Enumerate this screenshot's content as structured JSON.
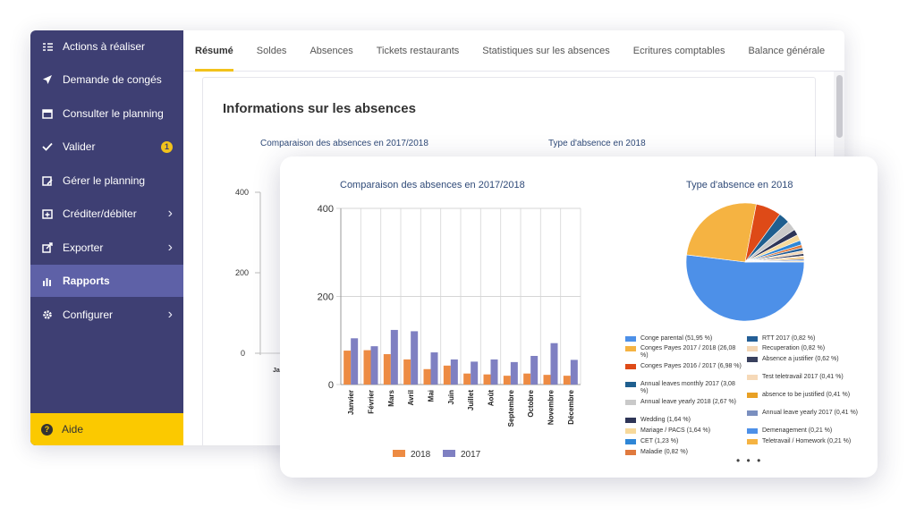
{
  "sidebar": {
    "items": [
      {
        "label": "Actions à réaliser",
        "icon": "tasks-icon",
        "chevron": false,
        "badge": null,
        "active": false
      },
      {
        "label": "Demande de congés",
        "icon": "paper-plane-icon",
        "chevron": false,
        "badge": null,
        "active": false
      },
      {
        "label": "Consulter le planning",
        "icon": "calendar-icon",
        "chevron": false,
        "badge": null,
        "active": false
      },
      {
        "label": "Valider",
        "icon": "check-icon",
        "chevron": false,
        "badge": "1",
        "active": false
      },
      {
        "label": "Gérer le planning",
        "icon": "calendar-edit-icon",
        "chevron": false,
        "badge": null,
        "active": false
      },
      {
        "label": "Créditer/débiter",
        "icon": "calendar-plus-icon",
        "chevron": true,
        "badge": null,
        "active": false
      },
      {
        "label": "Exporter",
        "icon": "export-icon",
        "chevron": true,
        "badge": null,
        "active": false
      },
      {
        "label": "Rapports",
        "icon": "bar-chart-icon",
        "chevron": false,
        "badge": null,
        "active": true
      },
      {
        "label": "Configurer",
        "icon": "gear-icon",
        "chevron": true,
        "badge": null,
        "active": false
      }
    ],
    "help": {
      "label": "Aide",
      "icon_text": "?"
    }
  },
  "tabs": [
    {
      "label": "Résumé",
      "active": true
    },
    {
      "label": "Soldes",
      "active": false
    },
    {
      "label": "Absences",
      "active": false
    },
    {
      "label": "Tickets restaurants",
      "active": false
    },
    {
      "label": "Statistiques sur les absences",
      "active": false
    },
    {
      "label": "Ecritures comptables",
      "active": false
    },
    {
      "label": "Balance générale",
      "active": false
    }
  ],
  "content": {
    "section_title": "Informations sur les absences",
    "bg_bar_title": "Comparaison des absences en 2017/2018",
    "bg_pie_title": "Type d'absence en 2018",
    "bg_y_ticks": [
      "400",
      "200",
      "0"
    ],
    "bg_x_first": "Jan"
  },
  "colors": {
    "sidebar": "#3e3f73",
    "active": "#5e61a7",
    "accent": "#f2c21b",
    "series_2018": "#ed8b43",
    "series_2017": "#7f80c2"
  },
  "chart_data": [
    {
      "type": "bar",
      "title": "Comparaison des absences en 2017/2018",
      "categories": [
        "Janvier",
        "Février",
        "Mars",
        "Avril",
        "Mai",
        "Juin",
        "Juillet",
        "Août",
        "Septembre",
        "Octobre",
        "Novembre",
        "Décembre"
      ],
      "series": [
        {
          "name": "2018",
          "color": "#ed8b43",
          "values": [
            77,
            78,
            69,
            57,
            35,
            43,
            25,
            23,
            20,
            25,
            22,
            20
          ]
        },
        {
          "name": "2017",
          "color": "#7f80c2",
          "values": [
            105,
            87,
            124,
            121,
            73,
            57,
            52,
            57,
            51,
            65,
            94,
            56
          ]
        }
      ],
      "y_ticks": [
        0,
        200,
        400
      ],
      "ylim": [
        0,
        400
      ],
      "grid": true,
      "legend": "bottom"
    },
    {
      "type": "pie",
      "title": "Type d'absence en 2018",
      "slices": [
        {
          "label": "Conge parental (51,95 %)",
          "value": 51.95,
          "color": "#4d90e8"
        },
        {
          "label": "Conges Payes 2017 / 2018 (26,08 %)",
          "value": 26.08,
          "color": "#f5b342"
        },
        {
          "label": "Conges Payes 2016 / 2017 (6,98 %)",
          "value": 6.98,
          "color": "#de4a17"
        },
        {
          "label": "Annual leaves monthly 2017 (3,08 %)",
          "value": 3.08,
          "color": "#1f5f8f"
        },
        {
          "label": "Annual leave yearly 2018 (2,67 %)",
          "value": 2.67,
          "color": "#c9c9c9"
        },
        {
          "label": "Wedding (1,64 %)",
          "value": 1.64,
          "color": "#2e3557"
        },
        {
          "label": "Mariage / PACS (1,64 %)",
          "value": 1.64,
          "color": "#f7d99b"
        },
        {
          "label": "CET (1,23 %)",
          "value": 1.23,
          "color": "#2e86d6"
        },
        {
          "label": "Maladie (0,82 %)",
          "value": 0.82,
          "color": "#e07a3e"
        },
        {
          "label": "RTT 2017 (0,82 %)",
          "value": 0.82,
          "color": "#245f96"
        },
        {
          "label": "Recuperation (0,82 %)",
          "value": 0.82,
          "color": "#f3d6b5"
        },
        {
          "label": "Absence a justifier (0,62 %)",
          "value": 0.62,
          "color": "#39405e"
        },
        {
          "label": "Test teletravail 2017 (0,41 %)",
          "value": 0.41,
          "color": "#f6d9b8"
        },
        {
          "label": "absence to be justified (0,41 %)",
          "value": 0.41,
          "color": "#e8a024"
        },
        {
          "label": "Annual leave yearly 2017 (0,41 %)",
          "value": 0.41,
          "color": "#7a8fbf"
        },
        {
          "label": "Demenagement (0,21 %)",
          "value": 0.21,
          "color": "#4d90e8"
        },
        {
          "label": "Teletravail / Homework (0,21 %)",
          "value": 0.21,
          "color": "#f5b342"
        }
      ],
      "more_indicator": "• • •"
    }
  ]
}
